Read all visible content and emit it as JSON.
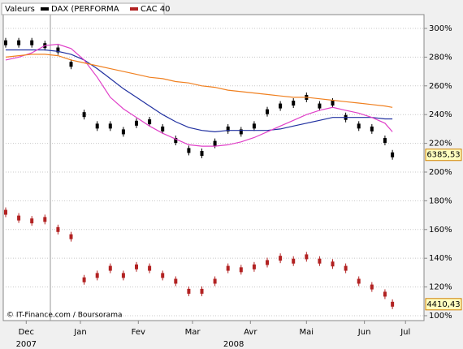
{
  "chart_data": {
    "type": "candlestick",
    "legend_title": "Valeurs",
    "footer": "© IT-Finance.com / Boursorama",
    "x": [
      7,
      14,
      21,
      28,
      35,
      42,
      49,
      56,
      63,
      70,
      77,
      84,
      91,
      98,
      105,
      112,
      119,
      126,
      133,
      140,
      147,
      154,
      161,
      168,
      175,
      182,
      189,
      196,
      203,
      210,
      214
    ],
    "xlim": [
      5.7,
      230.9
    ],
    "xticks": [
      {
        "value": 18,
        "label": "Dec"
      },
      {
        "value": 47,
        "label": "Jan"
      },
      {
        "value": 78,
        "label": "Fev"
      },
      {
        "value": 107,
        "label": "Mar"
      },
      {
        "value": 138,
        "label": "Avr"
      },
      {
        "value": 168,
        "label": "Mai"
      },
      {
        "value": 199,
        "label": "Jun"
      },
      {
        "value": 221,
        "label": "Jul"
      }
    ],
    "year_labels": [
      {
        "value": 18,
        "label": "2007"
      },
      {
        "value": 129,
        "label": "2008"
      }
    ],
    "ylim": [
      96.6,
      309.6
    ],
    "yticks": [
      {
        "value": 100,
        "label": "100%"
      },
      {
        "value": 120,
        "label": "120%"
      },
      {
        "value": 140,
        "label": "140%"
      },
      {
        "value": 160,
        "label": "160%"
      },
      {
        "value": 180,
        "label": "180%"
      },
      {
        "value": 200,
        "label": "200%"
      },
      {
        "value": 220,
        "label": "220%"
      },
      {
        "value": 240,
        "label": "240%"
      },
      {
        "value": 260,
        "label": "260%"
      },
      {
        "value": 280,
        "label": "280%"
      },
      {
        "value": 300,
        "label": "300%"
      }
    ],
    "grid": true,
    "series": [
      {
        "name": "DAX (PERFORMA",
        "color": "#000000",
        "style": "candle",
        "last_label": "6385,53",
        "values": [
          290,
          290,
          290,
          288,
          285,
          275,
          240,
          232,
          232,
          228,
          234,
          235,
          230,
          222,
          215,
          213,
          220,
          230,
          228,
          232,
          242,
          246,
          248,
          252,
          246,
          248,
          238,
          232,
          230,
          222,
          212
        ]
      },
      {
        "name": "CAC 40",
        "color": "#b22222",
        "style": "candle",
        "last_label": "4410,43",
        "values": [
          172,
          168,
          166,
          167,
          160,
          155,
          125,
          128,
          133,
          128,
          134,
          133,
          128,
          124,
          117,
          117,
          124,
          133,
          132,
          134,
          137,
          140,
          138,
          141,
          138,
          136,
          133,
          124,
          120,
          115,
          108
        ]
      },
      {
        "color": "#2030a0",
        "style": "line",
        "values": [
          285,
          285,
          285,
          285,
          284,
          282,
          278,
          272,
          265,
          258,
          252,
          246,
          240,
          235,
          231,
          229,
          228,
          229,
          229,
          229,
          229,
          230,
          232,
          234,
          236,
          238,
          238,
          238,
          238,
          237,
          237
        ]
      },
      {
        "color": "#e040c8",
        "style": "line",
        "values": [
          278,
          280,
          283,
          288,
          289,
          286,
          278,
          266,
          252,
          244,
          238,
          232,
          227,
          223,
          219,
          218,
          218,
          219,
          221,
          224,
          228,
          232,
          236,
          240,
          243,
          245,
          243,
          241,
          238,
          234,
          228
        ]
      },
      {
        "color": "#f08020",
        "style": "line",
        "values": [
          280,
          281,
          282,
          282,
          281,
          278,
          276,
          274,
          272,
          270,
          268,
          266,
          265,
          263,
          262,
          260,
          259,
          257,
          256,
          255,
          254,
          253,
          252,
          252,
          251,
          250,
          249,
          248,
          247,
          246,
          245
        ]
      }
    ]
  }
}
